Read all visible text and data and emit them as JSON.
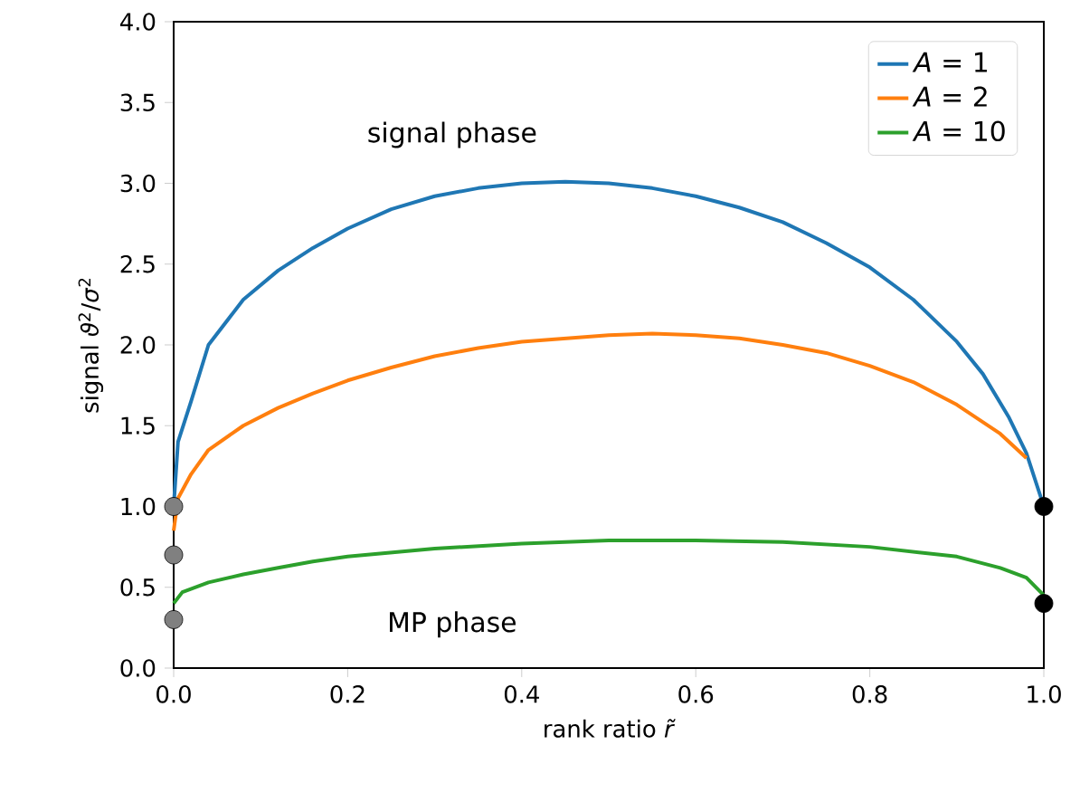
{
  "chart_data": {
    "type": "line",
    "xlabel": "rank ratio *r̃*",
    "ylabel": "signal *ϑ*$^{2}$/*σ*$^{2}$",
    "annotations": [
      "signal phase",
      "MP phase"
    ],
    "xlim": [
      0,
      1
    ],
    "ylim": [
      0,
      4
    ],
    "xticks": [
      {
        "value": 0,
        "label": "0.0"
      },
      {
        "value": 0.2,
        "label": "0.2"
      },
      {
        "value": 0.4,
        "label": "0.4"
      },
      {
        "value": 0.6,
        "label": "0.6"
      },
      {
        "value": 0.8,
        "label": "0.8"
      },
      {
        "value": 1,
        "label": "1.0"
      }
    ],
    "yticks": [
      {
        "value": 0,
        "label": "0.0"
      },
      {
        "value": 0.5,
        "label": "0.5"
      },
      {
        "value": 1,
        "label": "1.0"
      },
      {
        "value": 1.5,
        "label": "1.5"
      },
      {
        "value": 2,
        "label": "2.0"
      },
      {
        "value": 2.5,
        "label": "2.5"
      },
      {
        "value": 3,
        "label": "3.0"
      },
      {
        "value": 3.5,
        "label": "3.5"
      },
      {
        "value": 4,
        "label": "4.0"
      }
    ],
    "legend": "top right",
    "grid": false,
    "series": [
      {
        "name": "*A* = 1",
        "color": "#1f77b4",
        "x": [
          0,
          0.005,
          0.02,
          0.04,
          0.08,
          0.12,
          0.16,
          0.2,
          0.25,
          0.3,
          0.35,
          0.4,
          0.45,
          0.5,
          0.55,
          0.6,
          0.65,
          0.7,
          0.75,
          0.8,
          0.85,
          0.9,
          0.93,
          0.96,
          0.98,
          1.0
        ],
        "values": [
          1.0,
          1.4,
          1.65,
          2.0,
          2.28,
          2.46,
          2.6,
          2.72,
          2.84,
          2.92,
          2.97,
          3.0,
          3.01,
          3.0,
          2.97,
          2.92,
          2.85,
          2.76,
          2.63,
          2.48,
          2.28,
          2.02,
          1.82,
          1.55,
          1.33,
          1.0
        ]
      },
      {
        "name": "*A* = 2",
        "color": "#ff7f0e",
        "x": [
          0,
          0.005,
          0.02,
          0.04,
          0.08,
          0.12,
          0.16,
          0.2,
          0.25,
          0.3,
          0.35,
          0.4,
          0.45,
          0.5,
          0.55,
          0.6,
          0.65,
          0.7,
          0.75,
          0.8,
          0.85,
          0.9,
          0.95,
          0.98
        ],
        "values": [
          0.85,
          1.05,
          1.2,
          1.35,
          1.5,
          1.61,
          1.7,
          1.78,
          1.86,
          1.93,
          1.98,
          2.02,
          2.04,
          2.06,
          2.07,
          2.06,
          2.04,
          2.0,
          1.95,
          1.87,
          1.77,
          1.63,
          1.45,
          1.3
        ]
      },
      {
        "name": "*A* = 10",
        "color": "#2ca02c",
        "x": [
          0,
          0.01,
          0.04,
          0.08,
          0.12,
          0.16,
          0.2,
          0.3,
          0.4,
          0.5,
          0.6,
          0.7,
          0.8,
          0.9,
          0.95,
          0.98,
          1.0
        ],
        "values": [
          0.4,
          0.47,
          0.53,
          0.58,
          0.62,
          0.66,
          0.69,
          0.74,
          0.77,
          0.79,
          0.79,
          0.78,
          0.75,
          0.69,
          0.62,
          0.56,
          0.45
        ]
      },
      {
        "type": "scatter",
        "color": "#808080",
        "x": [
          0,
          0,
          0
        ],
        "values": [
          1.0,
          0.7,
          0.3
        ]
      },
      {
        "type": "scatter",
        "color": "#000000",
        "x": [
          1,
          1
        ],
        "values": [
          1.0,
          0.4
        ]
      }
    ]
  }
}
